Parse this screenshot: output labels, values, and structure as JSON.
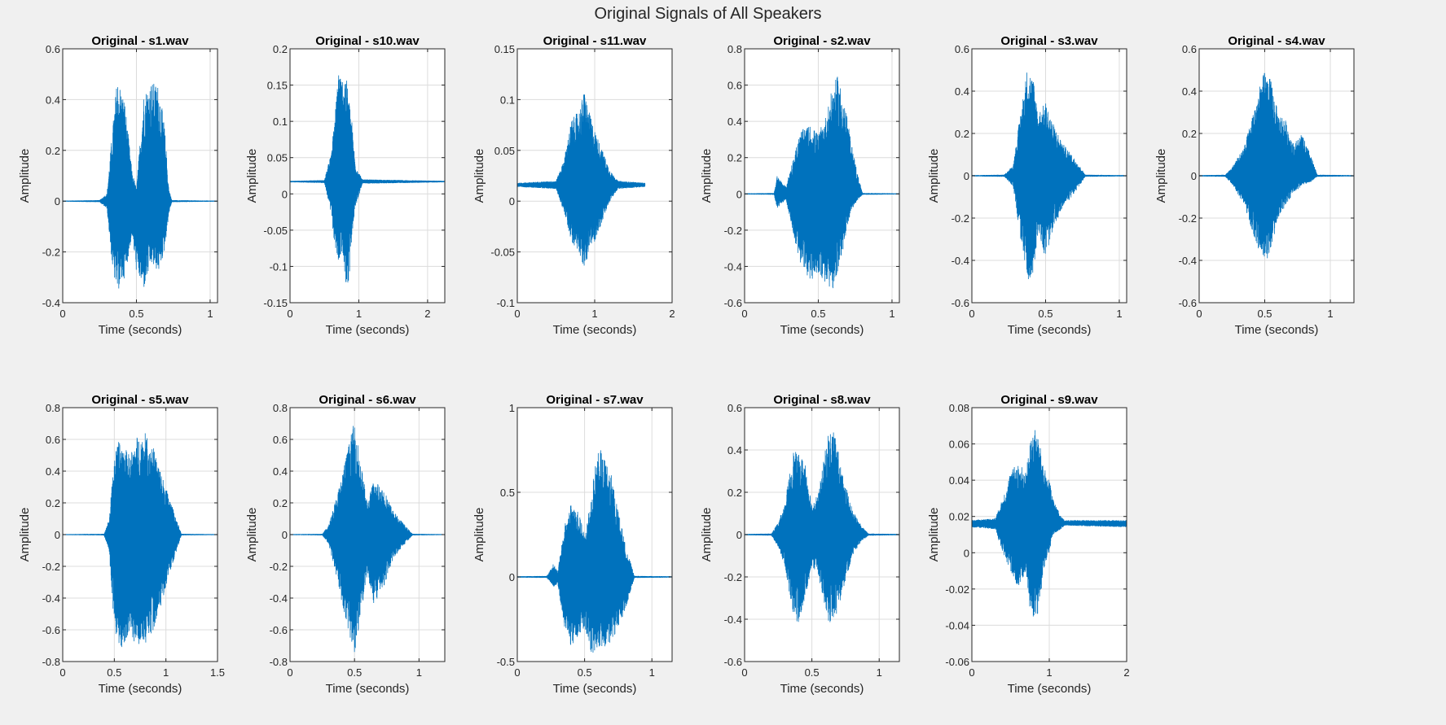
{
  "figure": {
    "title": "Original Signals of All Speakers",
    "background": "#f0f0f0",
    "signal_color": "#0072bd"
  },
  "chart_data": [
    {
      "type": "line",
      "title": "Original - s1.wav",
      "xlabel": "Time (seconds)",
      "ylabel": "Amplitude",
      "xlim": [
        0,
        1.05
      ],
      "ylim": [
        -0.4,
        0.6
      ],
      "xticks": [
        0,
        0.5,
        1
      ],
      "xtick_labels": [
        "0",
        "0.5",
        "1"
      ],
      "yticks": [
        -0.4,
        -0.2,
        0,
        0.2,
        0.4,
        0.6
      ],
      "ytick_labels": [
        "-0.4",
        "-0.2",
        "0",
        "0.2",
        "0.4",
        "0.6"
      ],
      "grid": true,
      "duration": 1.05,
      "baseline": 0,
      "envelope": {
        "t": [
          0,
          0.25,
          0.3,
          0.34,
          0.37,
          0.42,
          0.47,
          0.5,
          0.55,
          0.6,
          0.65,
          0.69,
          0.72,
          0.74,
          1.05
        ],
        "upper": [
          0.002,
          0.004,
          0.03,
          0.3,
          0.49,
          0.4,
          0.12,
          0.05,
          0.43,
          0.47,
          0.46,
          0.3,
          0.05,
          0.004,
          0.002
        ],
        "lower": [
          -0.002,
          -0.004,
          -0.03,
          -0.28,
          -0.36,
          -0.3,
          -0.14,
          -0.28,
          -0.35,
          -0.25,
          -0.28,
          -0.2,
          -0.05,
          -0.004,
          -0.002
        ]
      }
    },
    {
      "type": "line",
      "title": "Original - s10.wav",
      "xlabel": "Time (seconds)",
      "ylabel": "Amplitude",
      "xlim": [
        0,
        2.25
      ],
      "ylim": [
        -0.15,
        0.2
      ],
      "xticks": [
        0,
        1,
        2
      ],
      "xtick_labels": [
        "0",
        "1",
        "2"
      ],
      "yticks": [
        -0.15,
        -0.1,
        -0.05,
        0,
        0.05,
        0.1,
        0.15,
        0.2
      ],
      "ytick_labels": [
        "-0.15",
        "-0.1",
        "-0.05",
        "0",
        "0.05",
        "0.1",
        "0.15",
        "0.2"
      ],
      "grid": true,
      "duration": 2.25,
      "baseline": 0.017,
      "envelope": {
        "t": [
          0,
          0.5,
          0.58,
          0.65,
          0.7,
          0.75,
          0.8,
          0.85,
          0.9,
          0.95,
          1.05,
          2.25
        ],
        "upper": [
          0.018,
          0.019,
          0.05,
          0.1,
          0.18,
          0.16,
          0.17,
          0.14,
          0.1,
          0.04,
          0.02,
          0.018
        ],
        "lower": [
          0.016,
          0.015,
          -0.02,
          -0.07,
          -0.1,
          -0.08,
          -0.12,
          -0.13,
          -0.06,
          -0.02,
          0.014,
          0.016
        ]
      }
    },
    {
      "type": "line",
      "title": "Original - s11.wav",
      "xlabel": "Time (seconds)",
      "ylabel": "Amplitude",
      "xlim": [
        0,
        2
      ],
      "ylim": [
        -0.1,
        0.15
      ],
      "xticks": [
        0,
        1,
        2
      ],
      "xtick_labels": [
        "0",
        "1",
        "2"
      ],
      "yticks": [
        -0.1,
        -0.05,
        0,
        0.05,
        0.1,
        0.15
      ],
      "ytick_labels": [
        "-0.1",
        "-0.05",
        "0",
        "0.05",
        "0.1",
        "0.15"
      ],
      "grid": true,
      "duration": 1.65,
      "baseline": 0.016,
      "envelope": {
        "t": [
          0,
          0.5,
          0.6,
          0.7,
          0.8,
          0.87,
          0.92,
          1,
          1.1,
          1.2,
          1.3,
          1.65
        ],
        "upper": [
          0.018,
          0.02,
          0.04,
          0.08,
          0.09,
          0.11,
          0.09,
          0.07,
          0.05,
          0.03,
          0.02,
          0.018
        ],
        "lower": [
          0.014,
          0.012,
          -0.01,
          -0.04,
          -0.05,
          -0.07,
          -0.05,
          -0.04,
          -0.02,
          0,
          0.012,
          0.014
        ]
      }
    },
    {
      "type": "line",
      "title": "Original - s2.wav",
      "xlabel": "Time (seconds)",
      "ylabel": "Amplitude",
      "xlim": [
        0,
        1.05
      ],
      "ylim": [
        -0.6,
        0.8
      ],
      "xticks": [
        0,
        0.5,
        1
      ],
      "xtick_labels": [
        "0",
        "0.5",
        "1"
      ],
      "yticks": [
        -0.6,
        -0.4,
        -0.2,
        0,
        0.2,
        0.4,
        0.6,
        0.8
      ],
      "ytick_labels": [
        "-0.6",
        "-0.4",
        "-0.2",
        "0",
        "0.2",
        "0.4",
        "0.6",
        "0.8"
      ],
      "grid": true,
      "duration": 1.05,
      "baseline": 0,
      "envelope": {
        "t": [
          0,
          0.2,
          0.22,
          0.28,
          0.33,
          0.38,
          0.45,
          0.5,
          0.55,
          0.6,
          0.63,
          0.67,
          0.72,
          0.77,
          0.8,
          1.05
        ],
        "upper": [
          0.003,
          0.005,
          0.1,
          0.04,
          0.2,
          0.35,
          0.38,
          0.33,
          0.43,
          0.6,
          0.65,
          0.55,
          0.3,
          0.1,
          0.005,
          0.003
        ],
        "lower": [
          -0.003,
          -0.005,
          -0.08,
          -0.03,
          -0.22,
          -0.4,
          -0.48,
          -0.44,
          -0.5,
          -0.53,
          -0.45,
          -0.3,
          -0.1,
          -0.03,
          -0.005,
          -0.003
        ]
      }
    },
    {
      "type": "line",
      "title": "Original - s3.wav",
      "xlabel": "Time (seconds)",
      "ylabel": "Amplitude",
      "xlim": [
        0,
        1.05
      ],
      "ylim": [
        -0.6,
        0.6
      ],
      "xticks": [
        0,
        0.5,
        1
      ],
      "xtick_labels": [
        "0",
        "0.5",
        "1"
      ],
      "yticks": [
        -0.6,
        -0.4,
        -0.2,
        0,
        0.2,
        0.4,
        0.6
      ],
      "ytick_labels": [
        "-0.6",
        "-0.4",
        "-0.2",
        "0",
        "0.2",
        "0.4",
        "0.6"
      ],
      "grid": true,
      "duration": 1.05,
      "baseline": 0,
      "envelope": {
        "t": [
          0,
          0.22,
          0.28,
          0.33,
          0.38,
          0.42,
          0.45,
          0.5,
          0.55,
          0.62,
          0.7,
          0.77,
          1.05
        ],
        "upper": [
          0.003,
          0.005,
          0.05,
          0.3,
          0.53,
          0.45,
          0.3,
          0.35,
          0.25,
          0.15,
          0.08,
          0.005,
          0.003
        ],
        "lower": [
          -0.003,
          -0.005,
          -0.05,
          -0.3,
          -0.5,
          -0.45,
          -0.25,
          -0.4,
          -0.25,
          -0.15,
          -0.08,
          -0.005,
          -0.003
        ]
      }
    },
    {
      "type": "line",
      "title": "Original - s4.wav",
      "xlabel": "Time (seconds)",
      "ylabel": "Amplitude",
      "xlim": [
        0,
        1.18
      ],
      "ylim": [
        -0.6,
        0.6
      ],
      "xticks": [
        0,
        0.5,
        1
      ],
      "xtick_labels": [
        "0",
        "0.5",
        "1"
      ],
      "yticks": [
        -0.6,
        -0.4,
        -0.2,
        0,
        0.2,
        0.4,
        0.6
      ],
      "ytick_labels": [
        "-0.6",
        "-0.4",
        "-0.2",
        "0",
        "0.2",
        "0.4",
        "0.6"
      ],
      "grid": true,
      "duration": 1.18,
      "baseline": 0,
      "envelope": {
        "t": [
          0,
          0.2,
          0.25,
          0.35,
          0.45,
          0.5,
          0.55,
          0.6,
          0.65,
          0.72,
          0.78,
          0.85,
          0.9,
          1.18
        ],
        "upper": [
          0.003,
          0.005,
          0.04,
          0.15,
          0.4,
          0.5,
          0.45,
          0.3,
          0.28,
          0.15,
          0.2,
          0.1,
          0.005,
          0.003
        ],
        "lower": [
          -0.003,
          -0.005,
          -0.04,
          -0.15,
          -0.35,
          -0.42,
          -0.35,
          -0.2,
          -0.15,
          -0.08,
          -0.05,
          -0.03,
          -0.005,
          -0.003
        ]
      }
    },
    {
      "type": "line",
      "title": "Original - s5.wav",
      "xlabel": "Time (seconds)",
      "ylabel": "Amplitude",
      "xlim": [
        0,
        1.5
      ],
      "ylim": [
        -0.8,
        0.8
      ],
      "xticks": [
        0,
        0.5,
        1,
        1.5
      ],
      "xtick_labels": [
        "0",
        "0.5",
        "1",
        "1.5"
      ],
      "yticks": [
        -0.8,
        -0.6,
        -0.4,
        -0.2,
        0,
        0.2,
        0.4,
        0.6,
        0.8
      ],
      "ytick_labels": [
        "-0.8",
        "-0.6",
        "-0.4",
        "-0.2",
        "0",
        "0.2",
        "0.4",
        "0.6",
        "0.8"
      ],
      "grid": true,
      "duration": 1.5,
      "baseline": 0,
      "envelope": {
        "t": [
          0,
          0.4,
          0.45,
          0.5,
          0.55,
          0.65,
          0.72,
          0.8,
          0.88,
          0.95,
          1.05,
          1.15,
          1.5
        ],
        "upper": [
          0.003,
          0.005,
          0.1,
          0.5,
          0.6,
          0.5,
          0.62,
          0.64,
          0.55,
          0.4,
          0.2,
          0.005,
          0.003
        ],
        "lower": [
          -0.003,
          -0.005,
          -0.1,
          -0.6,
          -0.73,
          -0.65,
          -0.7,
          -0.7,
          -0.6,
          -0.45,
          -0.22,
          -0.005,
          -0.003
        ]
      }
    },
    {
      "type": "line",
      "title": "Original - s6.wav",
      "xlabel": "Time (seconds)",
      "ylabel": "Amplitude",
      "xlim": [
        0,
        1.2
      ],
      "ylim": [
        -0.8,
        0.8
      ],
      "xticks": [
        0,
        0.5,
        1
      ],
      "xtick_labels": [
        "0",
        "0.5",
        "1"
      ],
      "yticks": [
        -0.8,
        -0.6,
        -0.4,
        -0.2,
        0,
        0.2,
        0.4,
        0.6,
        0.8
      ],
      "ytick_labels": [
        "-0.8",
        "-0.6",
        "-0.4",
        "-0.2",
        "0",
        "0.2",
        "0.4",
        "0.6",
        "0.8"
      ],
      "grid": true,
      "duration": 1.2,
      "baseline": 0,
      "envelope": {
        "t": [
          0,
          0.25,
          0.3,
          0.38,
          0.45,
          0.5,
          0.55,
          0.6,
          0.65,
          0.72,
          0.8,
          0.9,
          0.95,
          1.2
        ],
        "upper": [
          0.003,
          0.005,
          0.06,
          0.3,
          0.55,
          0.72,
          0.45,
          0.2,
          0.35,
          0.3,
          0.15,
          0.05,
          0.005,
          0.003
        ],
        "lower": [
          -0.003,
          -0.005,
          -0.06,
          -0.35,
          -0.6,
          -0.75,
          -0.5,
          -0.25,
          -0.45,
          -0.35,
          -0.15,
          -0.05,
          -0.005,
          -0.003
        ]
      }
    },
    {
      "type": "line",
      "title": "Original - s7.wav",
      "xlabel": "Time (seconds)",
      "ylabel": "Amplitude",
      "xlim": [
        0,
        1.15
      ],
      "ylim": [
        -0.5,
        1
      ],
      "xticks": [
        0,
        0.5,
        1
      ],
      "xtick_labels": [
        "0",
        "0.5",
        "1"
      ],
      "yticks": [
        -0.5,
        0,
        0.5,
        1
      ],
      "ytick_labels": [
        "-0.5",
        "0",
        "0.5",
        "1"
      ],
      "grid": true,
      "duration": 1.15,
      "baseline": 0,
      "envelope": {
        "t": [
          0,
          0.22,
          0.27,
          0.3,
          0.35,
          0.4,
          0.45,
          0.5,
          0.55,
          0.6,
          0.65,
          0.7,
          0.75,
          0.8,
          0.87,
          1.15
        ],
        "upper": [
          0.004,
          0.006,
          0.08,
          0.03,
          0.3,
          0.45,
          0.4,
          0.25,
          0.5,
          0.78,
          0.7,
          0.6,
          0.4,
          0.2,
          0.006,
          0.004
        ],
        "lower": [
          -0.004,
          -0.006,
          -0.06,
          -0.04,
          -0.3,
          -0.42,
          -0.35,
          -0.3,
          -0.45,
          -0.44,
          -0.42,
          -0.38,
          -0.3,
          -0.2,
          -0.006,
          -0.004
        ]
      }
    },
    {
      "type": "line",
      "title": "Original - s8.wav",
      "xlabel": "Time (seconds)",
      "ylabel": "Amplitude",
      "xlim": [
        0,
        1.15
      ],
      "ylim": [
        -0.6,
        0.6
      ],
      "xticks": [
        0,
        0.5,
        1
      ],
      "xtick_labels": [
        "0",
        "0.5",
        "1"
      ],
      "yticks": [
        -0.6,
        -0.4,
        -0.2,
        0,
        0.2,
        0.4,
        0.6
      ],
      "ytick_labels": [
        "-0.6",
        "-0.4",
        "-0.2",
        "0",
        "0.2",
        "0.4",
        "0.6"
      ],
      "grid": true,
      "duration": 1.15,
      "baseline": 0,
      "envelope": {
        "t": [
          0,
          0.2,
          0.25,
          0.3,
          0.36,
          0.4,
          0.45,
          0.5,
          0.55,
          0.62,
          0.67,
          0.72,
          0.8,
          0.87,
          0.92,
          1.15
        ],
        "upper": [
          0.003,
          0.005,
          0.06,
          0.15,
          0.4,
          0.38,
          0.35,
          0.15,
          0.2,
          0.48,
          0.5,
          0.3,
          0.12,
          0.04,
          0.005,
          0.003
        ],
        "lower": [
          -0.003,
          -0.005,
          -0.06,
          -0.15,
          -0.38,
          -0.43,
          -0.3,
          -0.15,
          -0.2,
          -0.42,
          -0.4,
          -0.3,
          -0.1,
          -0.03,
          -0.005,
          -0.003
        ]
      }
    },
    {
      "type": "line",
      "title": "Original - s9.wav",
      "xlabel": "Time (seconds)",
      "ylabel": "Amplitude",
      "xlim": [
        0,
        2
      ],
      "ylim": [
        -0.06,
        0.08
      ],
      "xticks": [
        0,
        1,
        2
      ],
      "xtick_labels": [
        "0",
        "1",
        "2"
      ],
      "yticks": [
        -0.06,
        -0.04,
        -0.02,
        0,
        0.02,
        0.04,
        0.06,
        0.08
      ],
      "ytick_labels": [
        "-0.06",
        "-0.04",
        "-0.02",
        "0",
        "0.02",
        "0.04",
        "0.06",
        "0.08"
      ],
      "grid": true,
      "duration": 2,
      "baseline": 0.016,
      "envelope": {
        "t": [
          0,
          0.3,
          0.4,
          0.5,
          0.6,
          0.7,
          0.75,
          0.8,
          0.85,
          0.9,
          0.95,
          1,
          1.05,
          1.15,
          1.2,
          2
        ],
        "upper": [
          0.018,
          0.019,
          0.03,
          0.045,
          0.05,
          0.045,
          0.06,
          0.07,
          0.065,
          0.055,
          0.045,
          0.04,
          0.03,
          0.02,
          0.018,
          0.018
        ],
        "lower": [
          0.014,
          0.013,
          0,
          -0.01,
          -0.02,
          -0.01,
          -0.035,
          -0.04,
          -0.035,
          -0.02,
          -0.01,
          0,
          0.01,
          0.013,
          0.015,
          0.014
        ]
      }
    }
  ]
}
